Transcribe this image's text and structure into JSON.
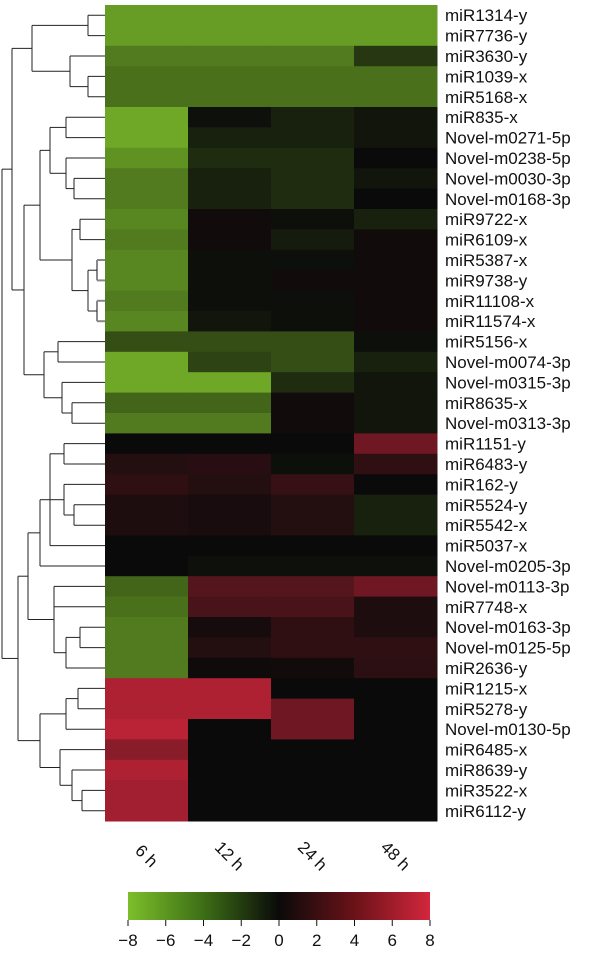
{
  "chart_data": {
    "type": "heatmap",
    "columns": [
      "6 h",
      "12 h",
      "24 h",
      "48 h"
    ],
    "rows": [
      {
        "label": "miR1314-y",
        "values": [
          -6.5,
          -6.5,
          -6.5,
          -6.5
        ]
      },
      {
        "label": "miR7736-y",
        "values": [
          -6.5,
          -6.5,
          -6.5,
          -6.5
        ]
      },
      {
        "label": "miR3630-y",
        "values": [
          -5,
          -5,
          -5,
          -2
        ]
      },
      {
        "label": "miR1039-x",
        "values": [
          -4.5,
          -4.5,
          -4.5,
          -4.5
        ]
      },
      {
        "label": "miR5168-x",
        "values": [
          -4.5,
          -4.5,
          -4.5,
          -4.5
        ]
      },
      {
        "label": "miR835-x",
        "values": [
          -7,
          -0.3,
          -1,
          -0.5
        ]
      },
      {
        "label": "Novel-m0271-5p",
        "values": [
          -7,
          -1,
          -1,
          -0.5
        ]
      },
      {
        "label": "Novel-m0238-5p",
        "values": [
          -6,
          -1.5,
          -1.5,
          0
        ]
      },
      {
        "label": "Novel-m0030-3p",
        "values": [
          -5,
          -1,
          -1.5,
          -0.5
        ]
      },
      {
        "label": "Novel-m0168-3p",
        "values": [
          -5,
          -1,
          -1.5,
          0
        ]
      },
      {
        "label": "miR9722-x",
        "values": [
          -5.5,
          0.3,
          -0.2,
          -1
        ]
      },
      {
        "label": "miR6109-x",
        "values": [
          -5,
          0.3,
          -0.8,
          0.3
        ]
      },
      {
        "label": "miR5387-x",
        "values": [
          -5.5,
          -0.2,
          -0.2,
          0.3
        ]
      },
      {
        "label": "miR9738-y",
        "values": [
          -5.5,
          -0.2,
          0.3,
          0.3
        ]
      },
      {
        "label": "miR11108-x",
        "values": [
          -5,
          -0.2,
          -0.2,
          0.3
        ]
      },
      {
        "label": "miR11574-x",
        "values": [
          -5.5,
          -0.5,
          -0.2,
          0.3
        ]
      },
      {
        "label": "miR5156-x",
        "values": [
          -3,
          -3,
          -3,
          -0.2
        ]
      },
      {
        "label": "Novel-m0074-3p",
        "values": [
          -7,
          -2.5,
          -3,
          -1
        ]
      },
      {
        "label": "Novel-m0315-3p",
        "values": [
          -7,
          -7,
          -1.5,
          -0.5
        ]
      },
      {
        "label": "miR8635-x",
        "values": [
          -4,
          -4,
          0.3,
          -0.5
        ]
      },
      {
        "label": "Novel-m0313-3p",
        "values": [
          -5,
          -5,
          0.3,
          -0.5
        ]
      },
      {
        "label": "miR1151-y",
        "values": [
          0,
          0,
          0,
          4
        ]
      },
      {
        "label": "miR6483-y",
        "values": [
          1,
          1.2,
          -0.2,
          1.5
        ]
      },
      {
        "label": "miR162-y",
        "values": [
          1.5,
          1,
          1.8,
          0
        ]
      },
      {
        "label": "miR5524-y",
        "values": [
          0.8,
          0.6,
          1,
          -1
        ]
      },
      {
        "label": "miR5542-x",
        "values": [
          0.8,
          0.6,
          1,
          -1
        ]
      },
      {
        "label": "miR5037-x",
        "values": [
          0,
          0,
          0,
          0
        ]
      },
      {
        "label": "Novel-m0205-3p",
        "values": [
          0,
          -0.3,
          -0.3,
          -0.3
        ]
      },
      {
        "label": "Novel-m0113-3p",
        "values": [
          -4,
          3,
          3,
          4
        ]
      },
      {
        "label": "miR7748-x",
        "values": [
          -4.5,
          2.5,
          2.5,
          0.8
        ]
      },
      {
        "label": "Novel-m0163-3p",
        "values": [
          -5,
          0.5,
          1.5,
          0.8
        ]
      },
      {
        "label": "Novel-m0125-5p",
        "values": [
          -5,
          1,
          1.5,
          1.5
        ]
      },
      {
        "label": "miR2636-y",
        "values": [
          -5,
          0.2,
          0.3,
          1.3
        ]
      },
      {
        "label": "miR1215-x",
        "values": [
          6.5,
          6.5,
          0,
          0
        ]
      },
      {
        "label": "miR5278-y",
        "values": [
          6.5,
          6.5,
          4,
          0
        ]
      },
      {
        "label": "Novel-m0130-5p",
        "values": [
          7,
          0,
          4,
          0
        ]
      },
      {
        "label": "miR6485-x",
        "values": [
          5,
          0,
          0,
          0
        ]
      },
      {
        "label": "miR8639-y",
        "values": [
          6.5,
          0,
          0,
          0
        ]
      },
      {
        "label": "miR3522-x",
        "values": [
          6,
          0,
          0,
          0
        ]
      },
      {
        "label": "miR6112-y",
        "values": [
          6,
          0,
          0,
          0
        ]
      }
    ],
    "colorbar": {
      "min": -8,
      "max": 8,
      "ticks": [
        "−8",
        "−6",
        "−4",
        "−2",
        "0",
        "2",
        "4",
        "6",
        "8"
      ],
      "low_color": "#7cbf2a",
      "mid_color": "#0a0a0a",
      "high_color": "#d3263c"
    },
    "dendrogram": "row clustering tree on left"
  }
}
